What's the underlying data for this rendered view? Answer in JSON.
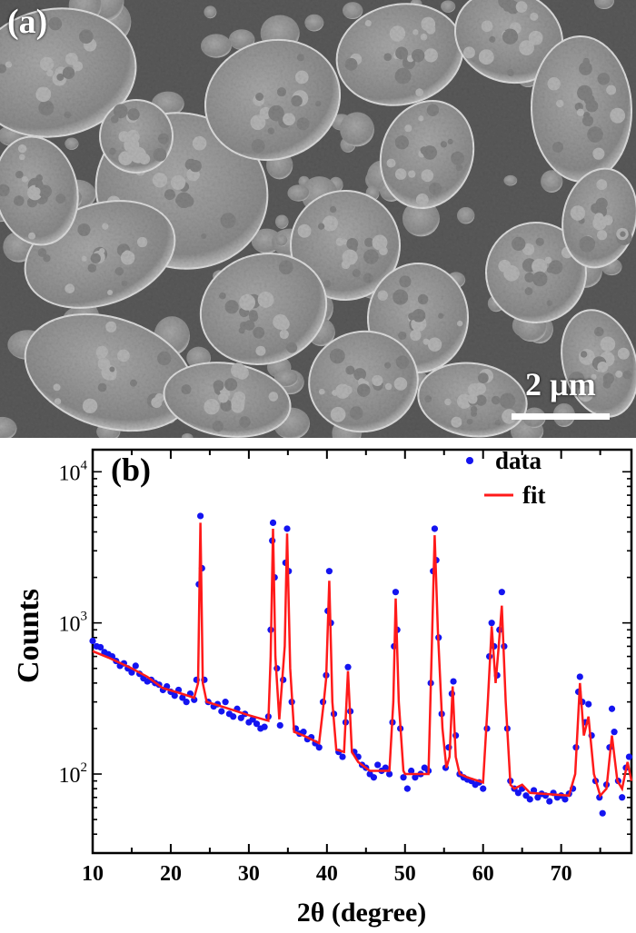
{
  "panel_a": {
    "label": "(a)",
    "scale_bar": "2 µm"
  },
  "chart_data": {
    "type": "scatter",
    "panel_label": "(b)",
    "xlabel": "2θ (degree)",
    "ylabel": "Counts",
    "xlim": [
      10,
      79
    ],
    "ylim": [
      30,
      14000
    ],
    "yscale": "log",
    "xticks": [
      10,
      20,
      30,
      40,
      50,
      60,
      70
    ],
    "xtick_labels": [
      "10",
      "20",
      "30",
      "40",
      "50",
      "60",
      "70"
    ],
    "yticks": [
      100,
      1000,
      10000
    ],
    "ytick_labels": [
      {
        "base": "10",
        "exp": "2"
      },
      {
        "base": "10",
        "exp": "3"
      },
      {
        "base": "10",
        "exp": "4"
      }
    ],
    "grid": false,
    "legend_position": "top-right",
    "series": [
      {
        "name": "data",
        "type": "scatter",
        "color": "#1414f0",
        "points": [
          [
            10,
            760
          ],
          [
            10.5,
            700
          ],
          [
            11,
            690
          ],
          [
            11.5,
            640
          ],
          [
            12,
            620
          ],
          [
            12.5,
            600
          ],
          [
            13,
            560
          ],
          [
            13.5,
            520
          ],
          [
            14,
            540
          ],
          [
            14.5,
            500
          ],
          [
            15,
            470
          ],
          [
            15.5,
            520
          ],
          [
            16,
            460
          ],
          [
            16.5,
            430
          ],
          [
            17,
            410
          ],
          [
            17.5,
            420
          ],
          [
            18,
            400
          ],
          [
            18.5,
            390
          ],
          [
            19,
            360
          ],
          [
            19.5,
            380
          ],
          [
            20,
            350
          ],
          [
            20.5,
            330
          ],
          [
            21,
            360
          ],
          [
            21.5,
            320
          ],
          [
            22,
            300
          ],
          [
            22.5,
            340
          ],
          [
            23,
            310
          ],
          [
            23.3,
            420
          ],
          [
            23.6,
            1800
          ],
          [
            23.8,
            5100
          ],
          [
            24.0,
            2300
          ],
          [
            24.3,
            420
          ],
          [
            24.8,
            300
          ],
          [
            25.5,
            280
          ],
          [
            26,
            290
          ],
          [
            26.5,
            260
          ],
          [
            27,
            300
          ],
          [
            27.5,
            250
          ],
          [
            28,
            240
          ],
          [
            28.5,
            270
          ],
          [
            29,
            235
          ],
          [
            29.5,
            250
          ],
          [
            30,
            220
          ],
          [
            30.5,
            230
          ],
          [
            31,
            215
          ],
          [
            31.5,
            200
          ],
          [
            32,
            205
          ],
          [
            32.5,
            240
          ],
          [
            32.8,
            900
          ],
          [
            33.0,
            3500
          ],
          [
            33.1,
            4600
          ],
          [
            33.3,
            2000
          ],
          [
            33.6,
            500
          ],
          [
            34,
            210
          ],
          [
            34.4,
            420
          ],
          [
            34.7,
            2500
          ],
          [
            34.9,
            4200
          ],
          [
            35.1,
            2200
          ],
          [
            35.5,
            300
          ],
          [
            36,
            200
          ],
          [
            36.5,
            185
          ],
          [
            37,
            190
          ],
          [
            37.5,
            170
          ],
          [
            38,
            175
          ],
          [
            38.5,
            160
          ],
          [
            39,
            150
          ],
          [
            39.5,
            300
          ],
          [
            39.9,
            450
          ],
          [
            40.1,
            1200
          ],
          [
            40.3,
            2200
          ],
          [
            40.5,
            1000
          ],
          [
            40.9,
            250
          ],
          [
            41.5,
            140
          ],
          [
            42,
            130
          ],
          [
            42.4,
            220
          ],
          [
            42.7,
            510
          ],
          [
            43,
            260
          ],
          [
            43.5,
            140
          ],
          [
            44,
            130
          ],
          [
            44.5,
            115
          ],
          [
            45,
            110
          ],
          [
            45.5,
            100
          ],
          [
            46,
            95
          ],
          [
            46.5,
            115
          ],
          [
            47,
            105
          ],
          [
            47.5,
            110
          ],
          [
            48,
            100
          ],
          [
            48.4,
            220
          ],
          [
            48.6,
            700
          ],
          [
            48.8,
            1600
          ],
          [
            49.0,
            900
          ],
          [
            49.4,
            200
          ],
          [
            49.8,
            95
          ],
          [
            50.3,
            80
          ],
          [
            50.8,
            105
          ],
          [
            51.3,
            95
          ],
          [
            52,
            100
          ],
          [
            52.5,
            110
          ],
          [
            53,
            105
          ],
          [
            53.3,
            400
          ],
          [
            53.6,
            2200
          ],
          [
            53.8,
            4200
          ],
          [
            54.0,
            2600
          ],
          [
            54.3,
            800
          ],
          [
            54.7,
            250
          ],
          [
            55.2,
            110
          ],
          [
            55.6,
            150
          ],
          [
            56.0,
            340
          ],
          [
            56.2,
            410
          ],
          [
            56.5,
            180
          ],
          [
            57,
            100
          ],
          [
            57.5,
            95
          ],
          [
            58,
            92
          ],
          [
            58.5,
            90
          ],
          [
            59,
            85
          ],
          [
            59.5,
            88
          ],
          [
            60,
            80
          ],
          [
            60.5,
            200
          ],
          [
            60.8,
            600
          ],
          [
            61.1,
            1000
          ],
          [
            61.4,
            700
          ],
          [
            61.8,
            450
          ],
          [
            62.1,
            900
          ],
          [
            62.4,
            1600
          ],
          [
            62.7,
            700
          ],
          [
            63.1,
            200
          ],
          [
            63.5,
            90
          ],
          [
            64,
            80
          ],
          [
            64.5,
            75
          ],
          [
            65,
            80
          ],
          [
            65.5,
            72
          ],
          [
            66,
            68
          ],
          [
            66.5,
            78
          ],
          [
            67,
            70
          ],
          [
            67.5,
            74
          ],
          [
            68,
            72
          ],
          [
            68.5,
            66
          ],
          [
            69,
            75
          ],
          [
            69.5,
            70
          ],
          [
            70,
            72
          ],
          [
            70.5,
            68
          ],
          [
            71,
            74
          ],
          [
            71.5,
            80
          ],
          [
            71.9,
            150
          ],
          [
            72.2,
            350
          ],
          [
            72.4,
            440
          ],
          [
            72.7,
            300
          ],
          [
            73.1,
            220
          ],
          [
            73.5,
            290
          ],
          [
            73.9,
            180
          ],
          [
            74.4,
            90
          ],
          [
            74.9,
            70
          ],
          [
            75.3,
            55
          ],
          [
            75.8,
            85
          ],
          [
            76.2,
            150
          ],
          [
            76.5,
            270
          ],
          [
            76.8,
            190
          ],
          [
            77.3,
            90
          ],
          [
            77.8,
            70
          ],
          [
            78.3,
            110
          ],
          [
            78.7,
            130
          ]
        ]
      },
      {
        "name": "fit",
        "type": "line",
        "color": "#ff1a1a",
        "points": [
          [
            10,
            650
          ],
          [
            12,
            590
          ],
          [
            15,
            500
          ],
          [
            17,
            440
          ],
          [
            19,
            370
          ],
          [
            21,
            345
          ],
          [
            23,
            320
          ],
          [
            23.5,
            400
          ],
          [
            23.8,
            4600
          ],
          [
            24.1,
            400
          ],
          [
            24.6,
            300
          ],
          [
            27,
            275
          ],
          [
            30,
            245
          ],
          [
            32.5,
            225
          ],
          [
            32.8,
            600
          ],
          [
            33.1,
            4200
          ],
          [
            33.4,
            600
          ],
          [
            33.9,
            230
          ],
          [
            34.6,
            700
          ],
          [
            34.9,
            3900
          ],
          [
            35.3,
            500
          ],
          [
            35.8,
            190
          ],
          [
            37,
            180
          ],
          [
            39,
            160
          ],
          [
            39.6,
            300
          ],
          [
            39.9,
            430
          ],
          [
            40.3,
            1900
          ],
          [
            40.7,
            300
          ],
          [
            41.2,
            145
          ],
          [
            42.2,
            140
          ],
          [
            42.7,
            480
          ],
          [
            43.2,
            140
          ],
          [
            44,
            120
          ],
          [
            45.5,
            105
          ],
          [
            48,
            105
          ],
          [
            48.5,
            300
          ],
          [
            48.8,
            1450
          ],
          [
            49.2,
            300
          ],
          [
            49.8,
            105
          ],
          [
            50,
            100
          ],
          [
            53,
            100
          ],
          [
            53.4,
            600
          ],
          [
            53.8,
            3800
          ],
          [
            54.2,
            900
          ],
          [
            54.8,
            200
          ],
          [
            55.3,
            110
          ],
          [
            55.7,
            130
          ],
          [
            56.1,
            380
          ],
          [
            56.5,
            130
          ],
          [
            57,
            100
          ],
          [
            58,
            95
          ],
          [
            60,
            88
          ],
          [
            60.6,
            300
          ],
          [
            61.1,
            950
          ],
          [
            61.6,
            400
          ],
          [
            62.0,
            700
          ],
          [
            62.4,
            1300
          ],
          [
            62.9,
            300
          ],
          [
            63.5,
            85
          ],
          [
            64,
            80
          ],
          [
            65,
            85
          ],
          [
            66,
            75
          ],
          [
            71,
            72
          ],
          [
            71.8,
            100
          ],
          [
            72.4,
            400
          ],
          [
            72.9,
            180
          ],
          [
            73.5,
            240
          ],
          [
            74.2,
            100
          ],
          [
            75,
            72
          ],
          [
            75.8,
            80
          ],
          [
            76.5,
            180
          ],
          [
            77.2,
            90
          ],
          [
            77.8,
            80
          ],
          [
            78.5,
            120
          ],
          [
            79,
            90
          ]
        ]
      }
    ]
  }
}
